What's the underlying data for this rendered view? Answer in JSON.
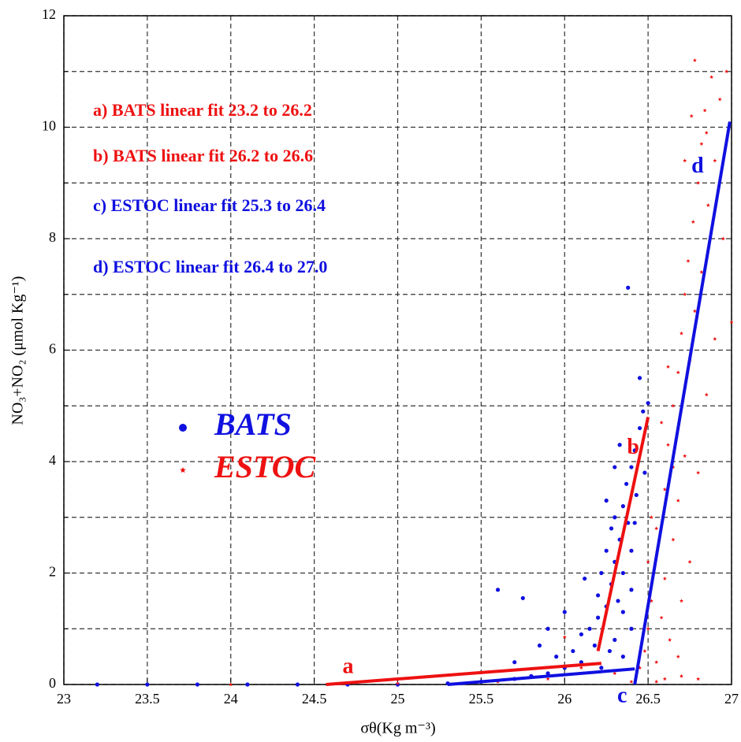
{
  "chart_data": {
    "type": "scatter",
    "x_label": "σθ(Kg m⁻³)",
    "y_label": "NO₃+NO₂ (μmol Kg⁻¹)",
    "xlim": [
      23,
      27
    ],
    "ylim": [
      0,
      12
    ],
    "xticks": [
      23,
      23.5,
      24,
      24.5,
      25,
      25.5,
      26,
      26.5,
      27
    ],
    "yticks": [
      0,
      2,
      4,
      6,
      8,
      10,
      12
    ],
    "yminor": [
      1,
      3,
      5,
      7,
      9,
      11
    ],
    "grid": true,
    "series": [
      {
        "name": "BATS",
        "color": "#1010e0",
        "marker": "circle",
        "x": [
          23.2,
          23.5,
          23.8,
          24.1,
          24.4,
          24.7,
          25.0,
          25.3,
          25.5,
          25.7,
          25.8,
          25.9,
          26.0,
          25.95,
          26.05,
          26.1,
          26.1,
          26.15,
          26.2,
          26.2,
          26.22,
          26.25,
          26.25,
          26.28,
          26.28,
          26.3,
          26.3,
          26.32,
          26.33,
          26.35,
          26.35,
          26.37,
          26.38,
          26.4,
          26.4,
          26.42,
          26.43,
          26.45,
          26.45,
          26.47,
          26.48,
          26.5,
          26.38,
          26.3,
          26.35,
          26.4,
          26.18,
          26.22,
          26.27,
          25.85,
          25.7,
          25.6,
          25.75,
          26.0,
          25.9,
          26.35,
          26.4,
          26.25,
          26.3,
          26.33,
          26.42,
          26.12
        ],
        "values": [
          0,
          0,
          0,
          0,
          0,
          0,
          0,
          0.02,
          0.05,
          0.1,
          0.15,
          0.2,
          0.3,
          0.5,
          0.6,
          0.4,
          0.9,
          1.0,
          1.2,
          1.6,
          2.0,
          1.4,
          2.4,
          1.8,
          2.8,
          2.2,
          3.0,
          1.5,
          2.6,
          3.2,
          2.0,
          3.6,
          2.9,
          3.9,
          2.4,
          4.2,
          3.4,
          4.6,
          5.5,
          4.9,
          3.8,
          5.05,
          7.12,
          0.8,
          0.5,
          1.0,
          0.7,
          0.3,
          0.6,
          0.7,
          0.4,
          1.7,
          1.55,
          1.3,
          1.0,
          1.3,
          1.7,
          3.3,
          3.9,
          4.3,
          2.9,
          1.9
        ]
      },
      {
        "name": "ESTOC",
        "color": "#ee1111",
        "marker": "star",
        "x": [
          24.0,
          25.0,
          25.6,
          25.9,
          26.0,
          26.1,
          26.3,
          26.4,
          26.45,
          26.48,
          26.5,
          26.52,
          26.5,
          26.55,
          26.55,
          26.58,
          26.6,
          26.6,
          26.62,
          26.63,
          26.65,
          26.65,
          26.68,
          26.68,
          26.7,
          26.7,
          26.72,
          26.72,
          26.74,
          26.75,
          26.75,
          26.77,
          26.78,
          26.78,
          26.8,
          26.8,
          26.82,
          26.82,
          26.84,
          26.85,
          26.86,
          26.88,
          26.9,
          26.9,
          26.93,
          26.95,
          26.97,
          27.0,
          26.6,
          26.7,
          26.8,
          26.55,
          26.62,
          26.58,
          26.52,
          26.68,
          26.72,
          26.76,
          26.85,
          26.65
        ],
        "values": [
          0,
          0.02,
          0.05,
          0.1,
          0.85,
          0.3,
          0.2,
          0.05,
          0.3,
          0.6,
          1.0,
          1.5,
          2.2,
          0.4,
          2.8,
          1.2,
          3.5,
          1.9,
          4.3,
          0.8,
          5.0,
          2.6,
          5.6,
          3.3,
          6.3,
          1.5,
          7.0,
          4.1,
          7.6,
          2.2,
          5.8,
          8.3,
          11.2,
          6.7,
          9.0,
          3.8,
          9.7,
          7.4,
          10.3,
          5.2,
          8.6,
          10.9,
          9.4,
          6.2,
          10.5,
          8.0,
          11.0,
          6.5,
          0.1,
          0.15,
          0.1,
          0.05,
          5.7,
          4.7,
          3.0,
          0.5,
          9.4,
          10.2,
          9.9,
          3.9
        ]
      }
    ],
    "fits": [
      {
        "name": "a) BATS linear fit 23.2 to 26.2",
        "label": "a",
        "color": "#ee1111",
        "x": [
          24.57,
          26.22
        ],
        "values": [
          0,
          0.38
        ]
      },
      {
        "name": "b) BATS linear fit 26.2 to 26.6",
        "label": "b",
        "color": "#ee1111",
        "x": [
          26.2,
          26.5
        ],
        "values": [
          0.6,
          4.8
        ]
      },
      {
        "name": "c) ESTOC linear fit 25.3 to 26.4",
        "label": "c",
        "color": "#1010e0",
        "x": [
          25.3,
          26.42
        ],
        "values": [
          0,
          0.28
        ]
      },
      {
        "name": "d) ESTOC linear fit 26.4 to 27.0",
        "label": "d",
        "color": "#1010e0",
        "x": [
          26.42,
          26.99
        ],
        "values": [
          0,
          10.1
        ]
      }
    ]
  }
}
